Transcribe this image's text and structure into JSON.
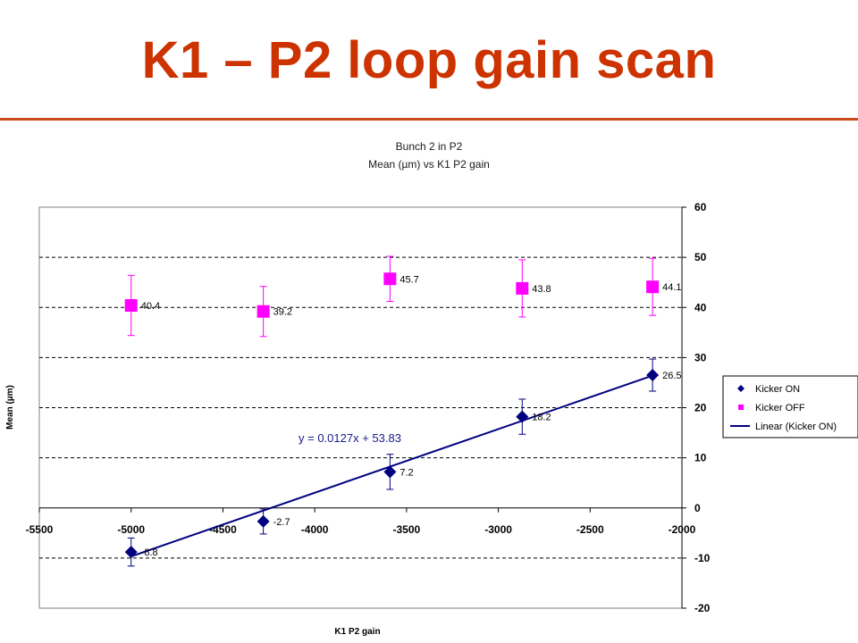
{
  "slide": {
    "title": "K1 – P2 loop gain scan"
  },
  "chart_data": {
    "type": "scatter",
    "title": "Bunch 2 in P2",
    "subtitle": "Mean (µm) vs K1 P2 gain",
    "xlabel": "K1 P2 gain",
    "ylabel": "Mean (µm)",
    "xlim": [
      -5500,
      -2000
    ],
    "ylim": [
      -20,
      60
    ],
    "xticks": [
      -5500,
      -5000,
      -4500,
      -4000,
      -3500,
      -3000,
      -2500,
      -2000
    ],
    "yticks": [
      -20,
      -10,
      0,
      10,
      20,
      30,
      40,
      50,
      60
    ],
    "grid": "horizontal dashed",
    "legend_position": "right",
    "series": [
      {
        "name": "Kicker ON",
        "marker": "diamond",
        "color": "#000080",
        "points": [
          {
            "x": -5000,
            "y": -8.8,
            "err": 2.8,
            "label": "-8.8"
          },
          {
            "x": -4280,
            "y": -2.7,
            "err": 2.5,
            "label": "-2.7"
          },
          {
            "x": -3590,
            "y": 7.2,
            "err": 3.5,
            "label": "7.2"
          },
          {
            "x": -2870,
            "y": 18.2,
            "err": 3.5,
            "label": "18.2"
          },
          {
            "x": -2160,
            "y": 26.5,
            "err": 3.2,
            "label": "26.5"
          }
        ]
      },
      {
        "name": "Kicker OFF",
        "marker": "square",
        "color": "#ff00ff",
        "points": [
          {
            "x": -5000,
            "y": 40.4,
            "err": 6.0,
            "label": "40.4"
          },
          {
            "x": -4280,
            "y": 39.2,
            "err": 5.0,
            "label": "39.2"
          },
          {
            "x": -3590,
            "y": 45.7,
            "err": 4.5,
            "label": "45.7"
          },
          {
            "x": -2870,
            "y": 43.8,
            "err": 5.7,
            "label": "43.8"
          },
          {
            "x": -2160,
            "y": 44.1,
            "err": 5.7,
            "label": "44.1"
          }
        ]
      },
      {
        "name": "Linear (Kicker ON)",
        "type": "trendline",
        "color": "#000080",
        "slope": 0.0127,
        "intercept": 53.83,
        "x_range": [
          -5000,
          -2160
        ],
        "equation": "y = 0.0127x + 53.83"
      }
    ]
  }
}
